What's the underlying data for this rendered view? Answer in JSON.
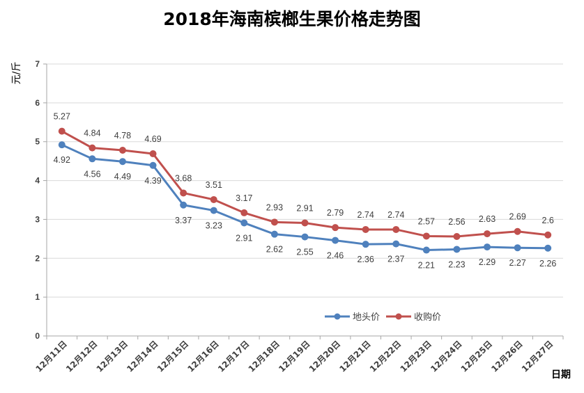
{
  "chart_data": {
    "type": "line",
    "title": "2018年海南槟榔生果价格走势图",
    "ylabel": "元/斤",
    "xlabel": "日期",
    "categories": [
      "12月11日",
      "12月12日",
      "12月13日",
      "12月14日",
      "12月15日",
      "12月16日",
      "12月17日",
      "12月18日",
      "12月19日",
      "12月20日",
      "12月21日",
      "12月22日",
      "12月23日",
      "12月24日",
      "12月25日",
      "12月26日",
      "12月27日"
    ],
    "ylim": [
      0,
      7
    ],
    "yticks": [
      0,
      1,
      2,
      3,
      4,
      5,
      6,
      7
    ],
    "grid": true,
    "legend_position": "bottom-right",
    "series": [
      {
        "name": "地头价",
        "color": "#4f81bd",
        "values": [
          4.92,
          4.56,
          4.49,
          4.39,
          3.37,
          3.23,
          2.91,
          2.62,
          2.55,
          2.46,
          2.36,
          2.37,
          2.21,
          2.23,
          2.29,
          2.27,
          2.26
        ],
        "labels": [
          "4.92",
          "4.56",
          "4.49",
          "4.39",
          "3.37",
          "3.23",
          "2.91",
          "2.62",
          "2.55",
          "2.46",
          "2.36",
          "2.37",
          "2.21",
          "2.23",
          "2.29",
          "2.27",
          "2.26"
        ],
        "label_position": "below"
      },
      {
        "name": "收购价",
        "color": "#c0504d",
        "values": [
          5.27,
          4.84,
          4.78,
          4.69,
          3.68,
          3.51,
          3.17,
          2.93,
          2.91,
          2.79,
          2.74,
          2.74,
          2.57,
          2.56,
          2.63,
          2.69,
          2.6
        ],
        "labels": [
          "5.27",
          "4.84",
          "4.78",
          "4.69",
          "3.68",
          "3.51",
          "3.17",
          "2.93",
          "2.91",
          "2.79",
          "2.74",
          "2.74",
          "2.57",
          "2.56",
          "2.63",
          "2.69",
          "2.6"
        ],
        "label_position": "above"
      }
    ]
  }
}
